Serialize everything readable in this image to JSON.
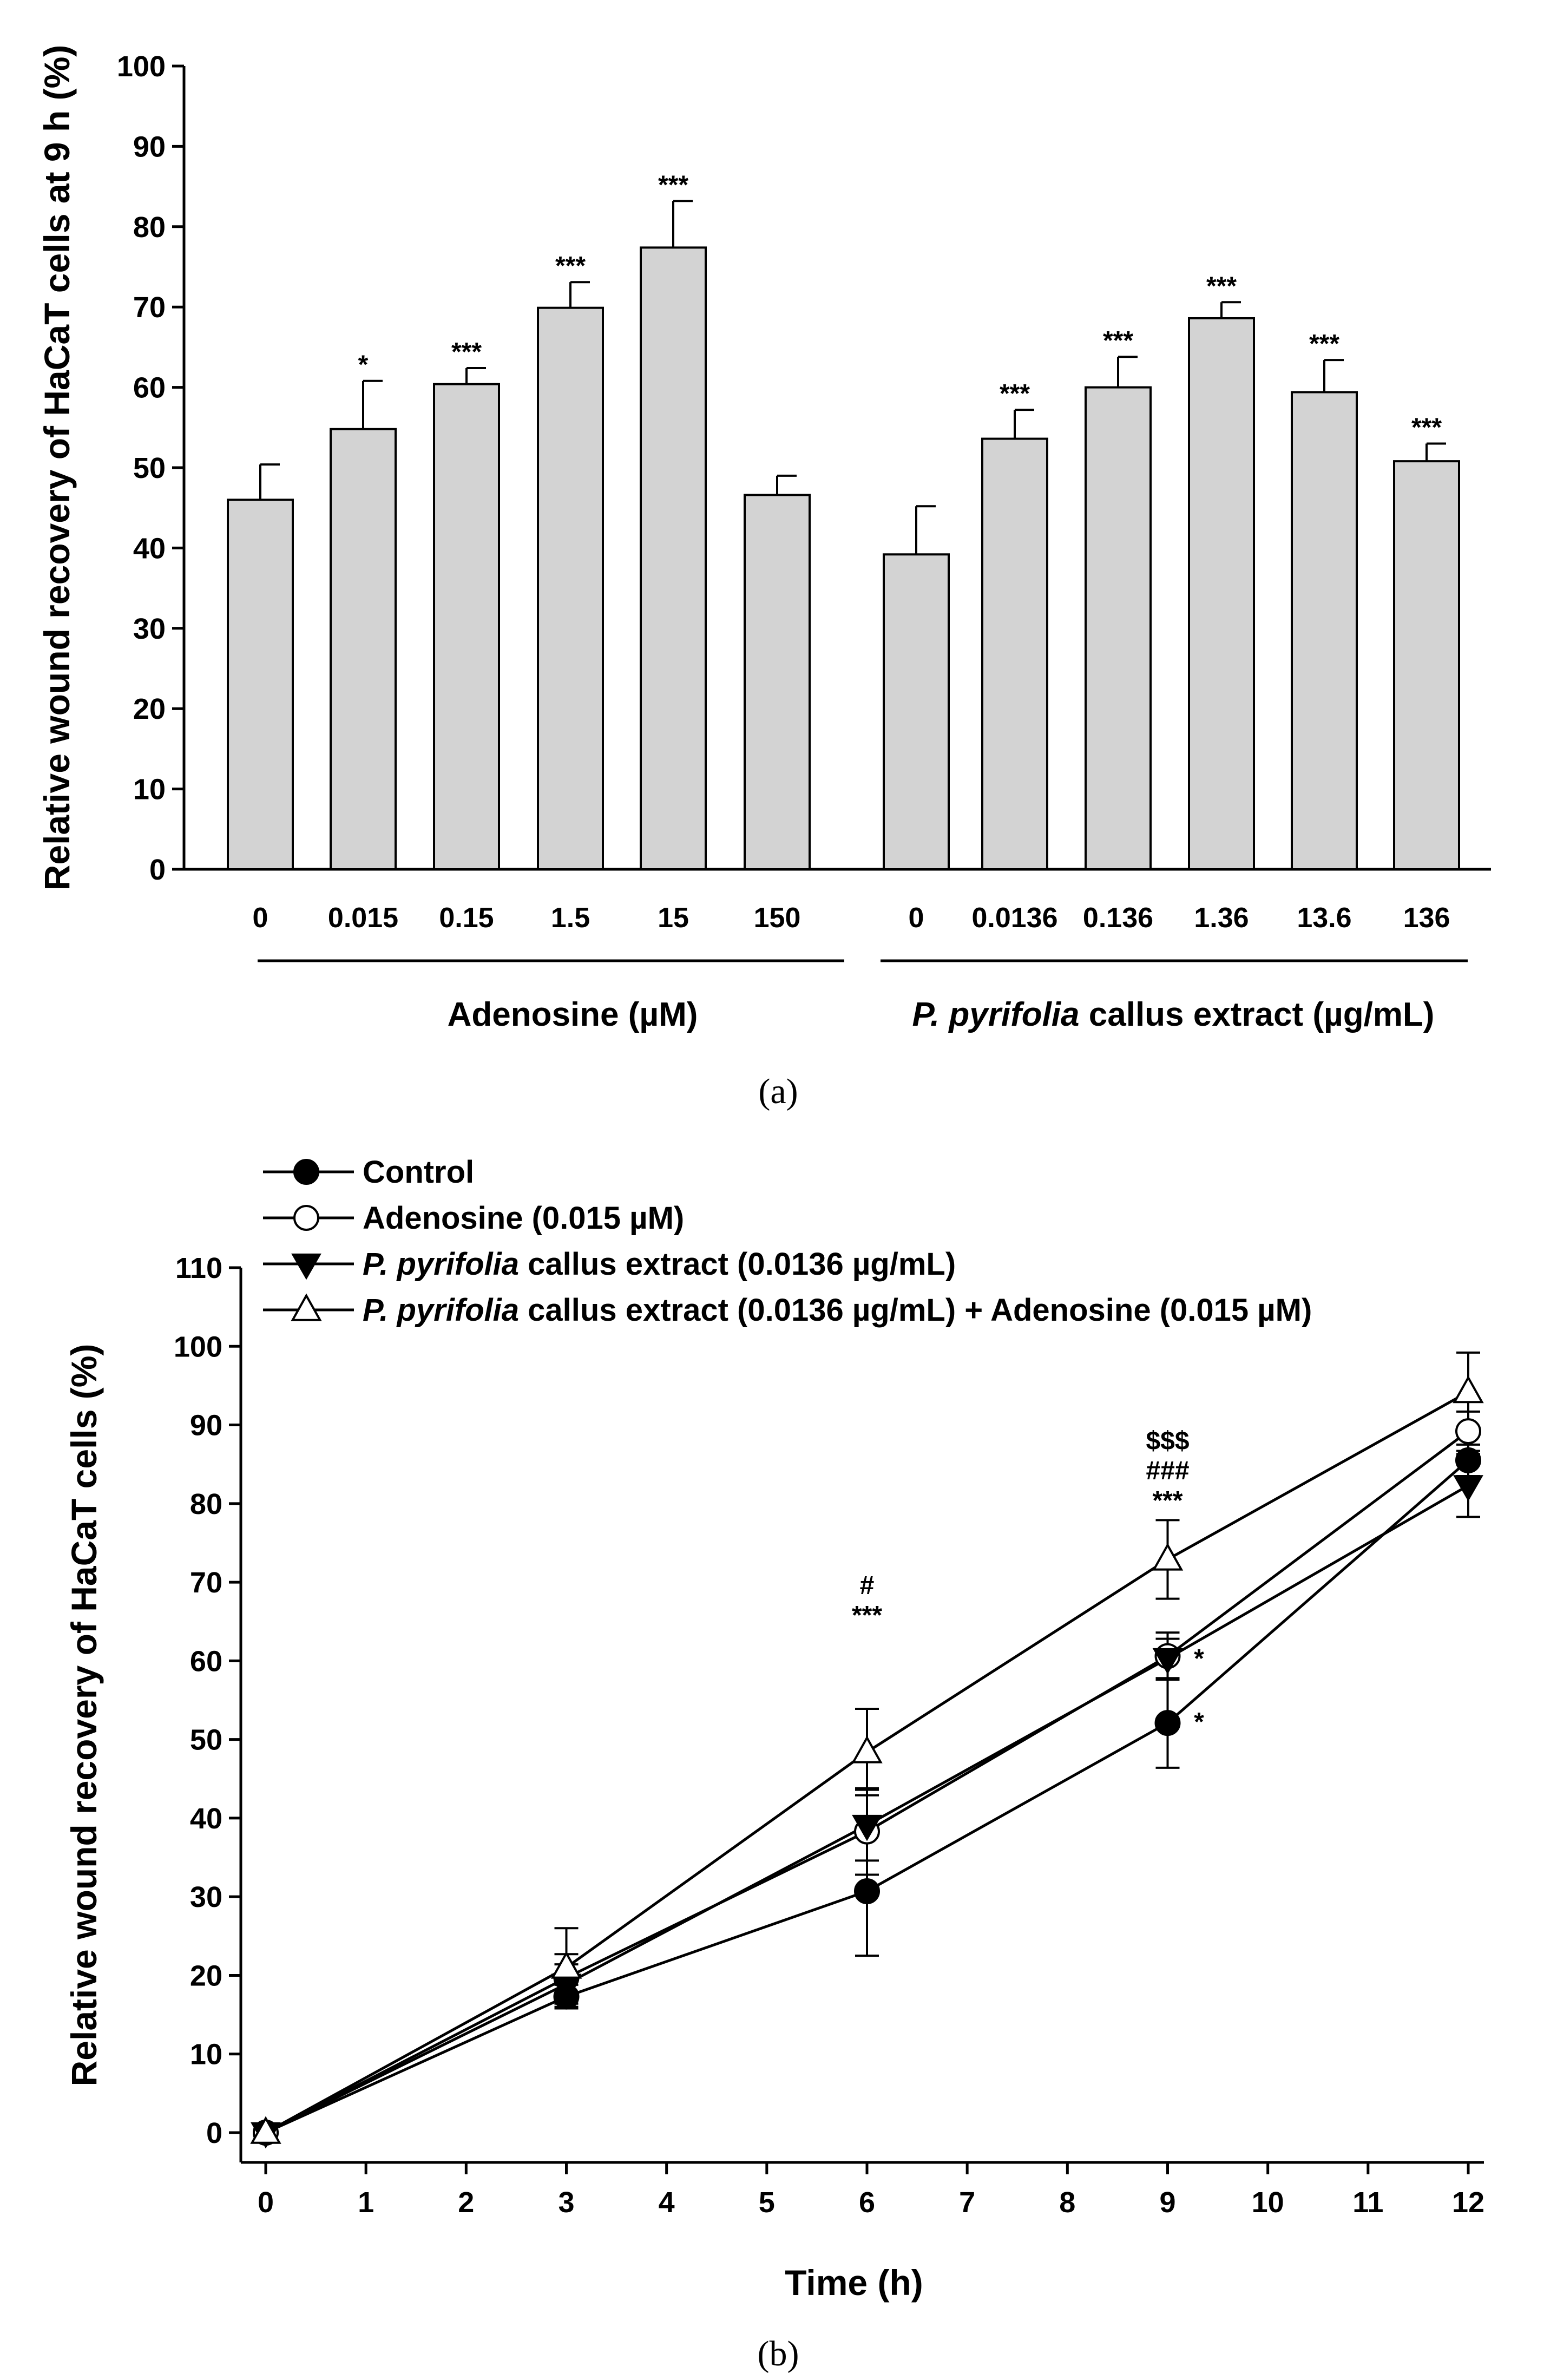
{
  "chart_data": [
    {
      "type": "bar",
      "panel_label": "a",
      "ylabel": "Relative wound recovery of HaCaT cells at 9 h (%)",
      "ylim": [
        0,
        100
      ],
      "yticks": [
        0,
        10,
        20,
        30,
        40,
        50,
        60,
        70,
        80,
        90,
        100
      ],
      "bar_color": "#d3d3d3",
      "groups": [
        {
          "label": "Adenosine (µM)",
          "label_parts": [
            {
              "text": "Adenosine (µM)",
              "italic": false
            }
          ],
          "categories": [
            "0",
            "0.015",
            "0.15",
            "1.5",
            "15",
            "150"
          ],
          "values": [
            46,
            54.8,
            60.4,
            69.9,
            77.4,
            46.6
          ],
          "errors": [
            4.4,
            6.0,
            2.0,
            3.2,
            5.8,
            2.4
          ],
          "significance": [
            "",
            "*",
            "***",
            "***",
            "***",
            ""
          ]
        },
        {
          "label": "P. pyrifolia callus extract (µg/mL)",
          "label_parts": [
            {
              "text": "P. pyrifolia",
              "italic": true
            },
            {
              "text": " callus extract (µg/mL)",
              "italic": false
            }
          ],
          "categories": [
            "0",
            "0.0136",
            "0.136",
            "1.36",
            "13.6",
            "136"
          ],
          "values": [
            39.2,
            53.6,
            60,
            68.6,
            59.4,
            50.8
          ],
          "errors": [
            6.0,
            3.6,
            3.8,
            2.0,
            4.0,
            2.2
          ],
          "significance": [
            "",
            "***",
            "***",
            "***",
            "***",
            "***"
          ]
        }
      ]
    },
    {
      "type": "line",
      "panel_label": "b",
      "xlabel": "Time (h)",
      "ylabel": "Relative wound recovery of HaCaT cells (%)",
      "xlim": [
        0,
        12
      ],
      "ylim": [
        0,
        110
      ],
      "xticks": [
        0,
        1,
        2,
        3,
        4,
        5,
        6,
        7,
        8,
        9,
        10,
        11,
        12
      ],
      "yticks": [
        0,
        10,
        20,
        30,
        40,
        50,
        60,
        70,
        80,
        90,
        100,
        110
      ],
      "x": [
        0,
        3,
        6,
        9,
        12
      ],
      "series": [
        {
          "name": "Control",
          "name_parts": [
            {
              "text": "Control",
              "italic": false
            }
          ],
          "marker": "filled-circle",
          "values": [
            0,
            17.3,
            30.7,
            52.1,
            85.5
          ],
          "errors": [
            0,
            1.5,
            8.2,
            5.7,
            2.0
          ]
        },
        {
          "name": "Adenosine (0.015 µM)",
          "name_parts": [
            {
              "text": "Adenosine (0.015 µM)",
              "italic": false
            }
          ],
          "marker": "open-circle",
          "values": [
            0,
            19.7,
            38.3,
            60.6,
            89.2
          ],
          "errors": [
            0,
            3.0,
            5.5,
            3.0,
            2.5
          ]
        },
        {
          "name": "P. pyrifolia callus extract (0.0136 µg/mL)",
          "name_parts": [
            {
              "text": "P. pyrifolia",
              "italic": true
            },
            {
              "text": " callus extract (0.0136 µg/mL)",
              "italic": false
            }
          ],
          "marker": "filled-triangle-down",
          "values": [
            0,
            18.9,
            39.1,
            60.3,
            82.3
          ],
          "errors": [
            0,
            2.5,
            4.5,
            2.5,
            4.0
          ]
        },
        {
          "name": "P. pyrifolia callus extract (0.0136 µg/mL) + Adenosine (0.015 µM)",
          "name_parts": [
            {
              "text": "P. pyrifolia",
              "italic": true
            },
            {
              "text": " callus extract (0.0136 µg/mL) + Adenosine (0.015 µM)",
              "italic": false
            }
          ],
          "marker": "open-triangle-up",
          "values": [
            0,
            21,
            48.4,
            72.9,
            94.2
          ],
          "errors": [
            0,
            5.0,
            5.5,
            5.0,
            5.0
          ]
        }
      ],
      "annotations": [
        {
          "x": 6,
          "lines": [
            "#",
            "***"
          ]
        },
        {
          "x": 9,
          "lines": [
            "$$$",
            "###",
            "***"
          ]
        },
        {
          "x": 9,
          "lines": [
            "*"
          ],
          "anchor": "upper-right"
        },
        {
          "x": 9,
          "lines": [
            "*"
          ],
          "anchor": "lower-right"
        }
      ]
    }
  ],
  "captions": {
    "a": "(a)",
    "b": "(b)"
  }
}
